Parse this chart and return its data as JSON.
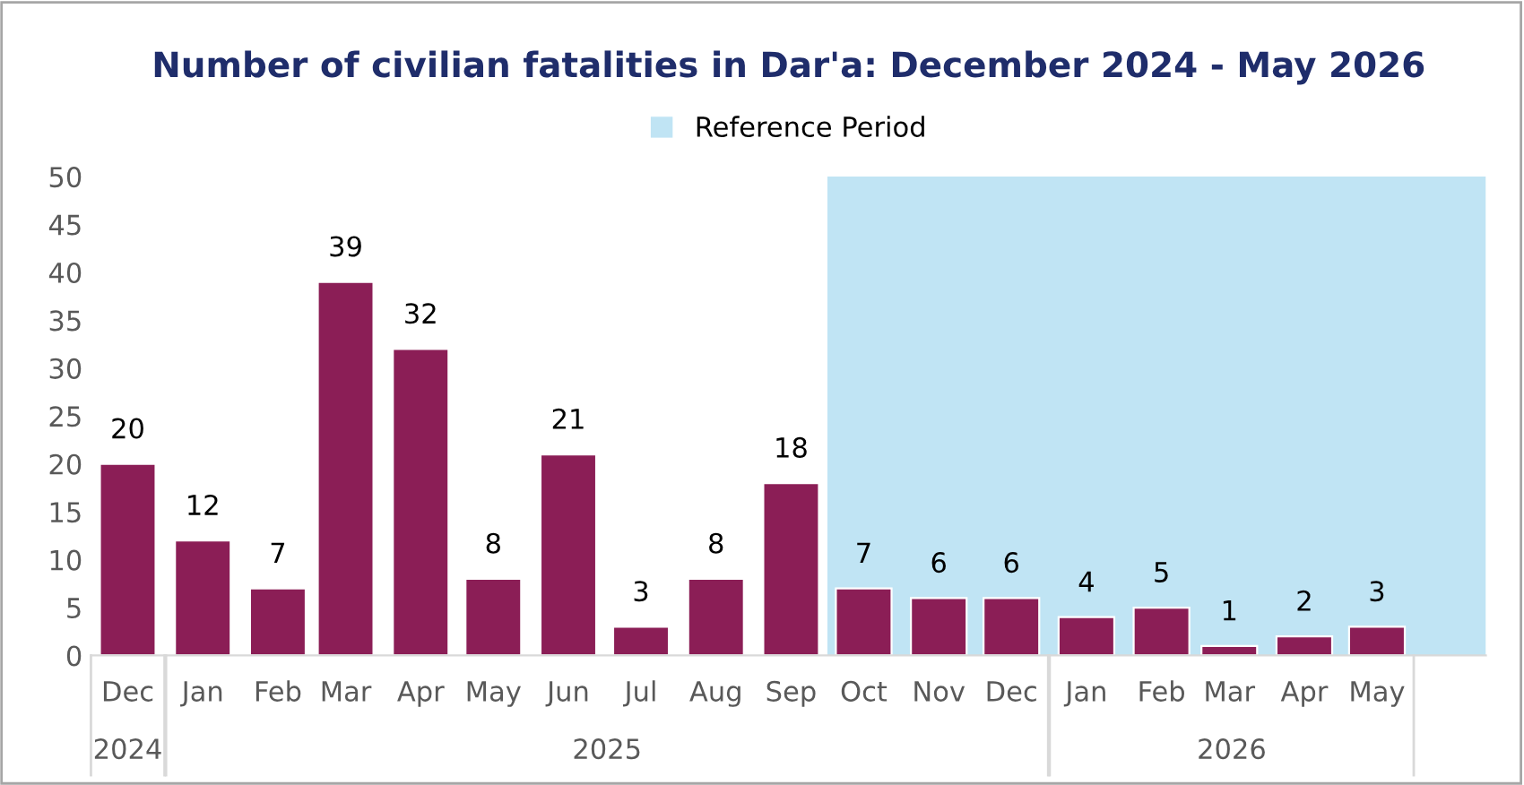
{
  "chart_data": {
    "type": "bar",
    "title": "Number of civilian fatalities in Dar'a: December 2024 - May 2026",
    "x": [
      "2024-12",
      "2025-01",
      "2025-02",
      "2025-03",
      "2025-04",
      "2025-05",
      "2025-06",
      "2025-07",
      "2025-08",
      "2025-09",
      "2025-10",
      "2025-11",
      "2025-12",
      "2026-01",
      "2026-02",
      "2026-03",
      "2026-04",
      "2026-05"
    ],
    "values": [
      20,
      12,
      7,
      39,
      32,
      8,
      21,
      3,
      8,
      18,
      7,
      6,
      6,
      4,
      5,
      1,
      2,
      3
    ],
    "color": "#8b1e56",
    "data_labels": true,
    "xlim": [
      "2024-11-16",
      "2026-06-15"
    ],
    "xticks": [
      {
        "value": "2024-12",
        "label": "Dec"
      },
      {
        "value": "2025-01",
        "label": "Jan"
      },
      {
        "value": "2025-02",
        "label": "Feb"
      },
      {
        "value": "2025-03",
        "label": "Mar"
      },
      {
        "value": "2025-04",
        "label": "Apr"
      },
      {
        "value": "2025-05",
        "label": "May"
      },
      {
        "value": "2025-06",
        "label": "Jun"
      },
      {
        "value": "2025-07",
        "label": "Jul"
      },
      {
        "value": "2025-08",
        "label": "Aug"
      },
      {
        "value": "2025-09",
        "label": "Sep"
      },
      {
        "value": "2025-10",
        "label": "Oct"
      },
      {
        "value": "2025-11",
        "label": "Nov"
      },
      {
        "value": "2025-12",
        "label": "Dec"
      },
      {
        "value": "2026-01",
        "label": "Jan"
      },
      {
        "value": "2026-02",
        "label": "Feb"
      },
      {
        "value": "2026-03",
        "label": "Mar"
      },
      {
        "value": "2026-04",
        "label": "Apr"
      },
      {
        "value": "2026-05",
        "label": "May"
      }
    ],
    "ylim": [
      0,
      50
    ],
    "yticks": [
      0,
      5,
      10,
      15,
      20,
      25,
      30,
      35,
      40,
      45,
      50
    ],
    "annotations": [
      "2024",
      "2025",
      "2026"
    ],
    "bands": [
      {
        "axis": "x",
        "from": "2025-09-16",
        "to": "2026-06-15",
        "label": "Reference Period",
        "color": "#c0e4f4"
      }
    ],
    "legend": "top",
    "grid": false
  }
}
